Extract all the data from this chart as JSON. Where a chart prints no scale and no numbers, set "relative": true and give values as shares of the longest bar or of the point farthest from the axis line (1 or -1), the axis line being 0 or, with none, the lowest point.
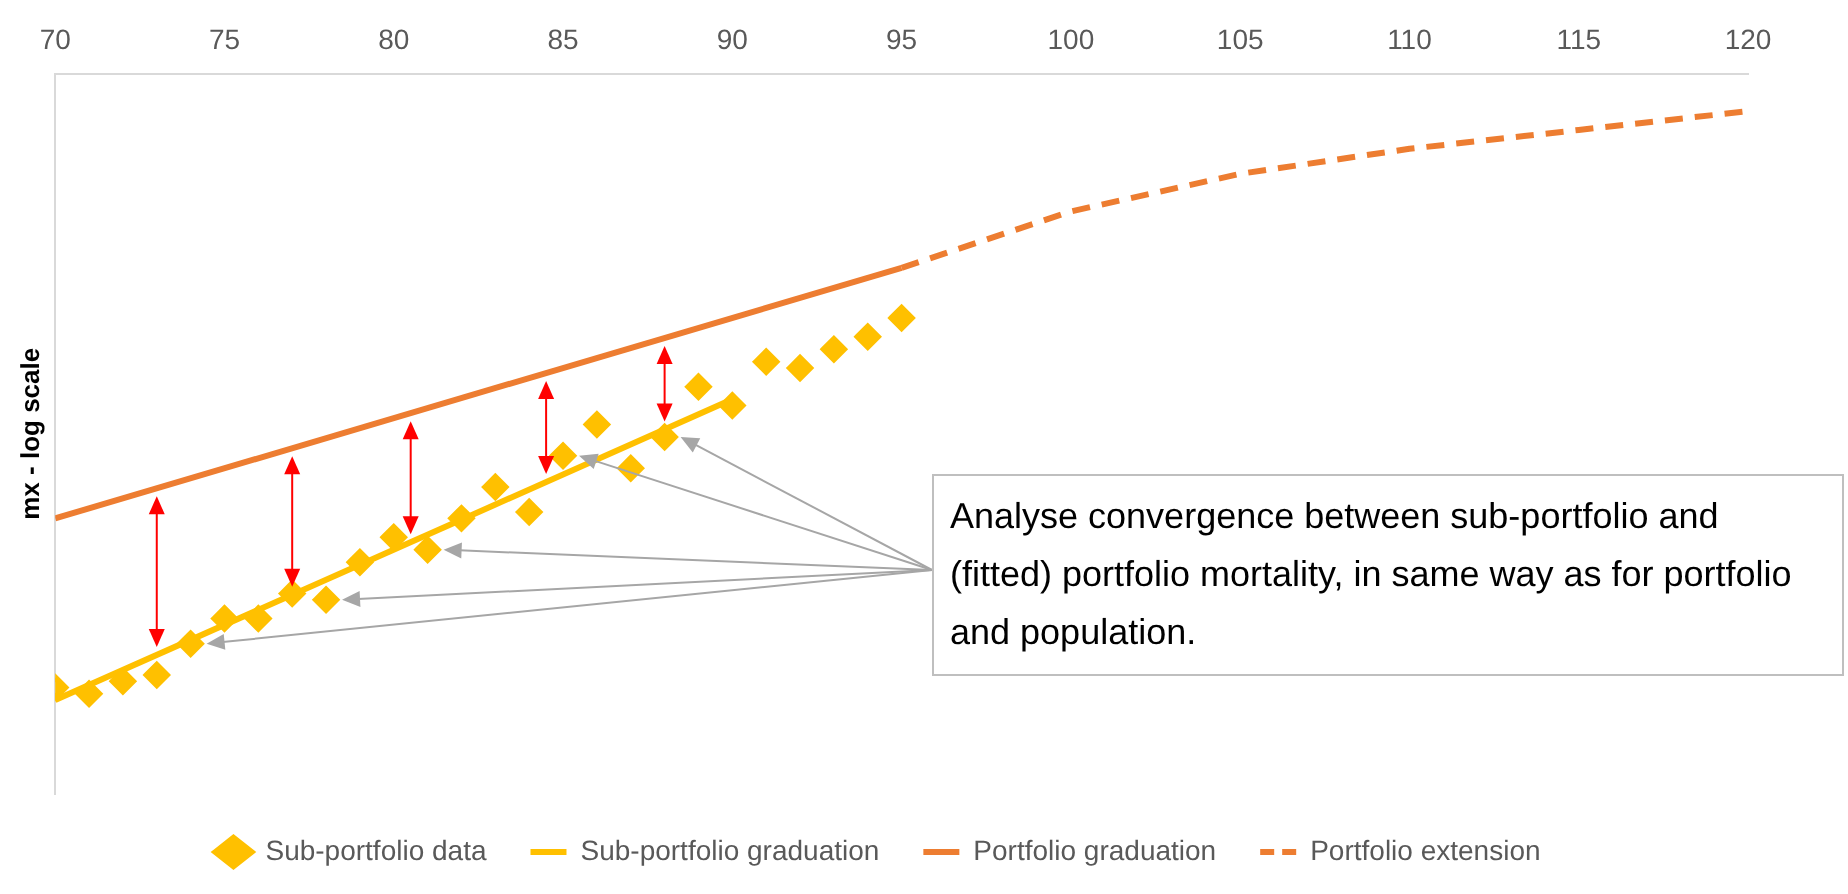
{
  "chart_data": {
    "type": "scatter",
    "ylabel": "mx - log scale",
    "relative": true,
    "xlim": [
      70,
      120
    ],
    "xticks": [
      70,
      75,
      80,
      85,
      90,
      95,
      100,
      105,
      110,
      115,
      120
    ],
    "grid": false,
    "legend": "bottom",
    "annotations": [
      "Analyse convergence between sub-portfolio and (fitted) portfolio mortality, in same way as for portfolio and population."
    ],
    "series": [
      {
        "name": "Sub-portfolio data",
        "type": "scatter",
        "marker": "diamond",
        "color": "#ffc000",
        "x": [
          70,
          71,
          72,
          73,
          74,
          75,
          76,
          77,
          78,
          79,
          80,
          81,
          82,
          83,
          84,
          85,
          86,
          87,
          88,
          89,
          90,
          91,
          92,
          93,
          94,
          95
        ],
        "values": [
          -0.98,
          -0.99,
          -0.97,
          -0.96,
          -0.91,
          -0.87,
          -0.87,
          -0.83,
          -0.84,
          -0.78,
          -0.74,
          -0.76,
          -0.71,
          -0.66,
          -0.7,
          -0.61,
          -0.56,
          -0.63,
          -0.58,
          -0.5,
          -0.53,
          -0.46,
          -0.47,
          -0.44,
          -0.42,
          -0.39
        ]
      },
      {
        "name": "Sub-portfolio graduation",
        "type": "line",
        "marker": "none",
        "color": "#ffc000",
        "x": [
          70,
          90
        ],
        "values": [
          -1,
          -0.52
        ]
      },
      {
        "name": "Portfolio graduation",
        "type": "line",
        "marker": "none",
        "color": "#ed7d31",
        "x": [
          70,
          95
        ],
        "values": [
          -0.71,
          -0.31
        ]
      },
      {
        "name": "Portfolio extension",
        "type": "line",
        "marker": "none",
        "line_style": "dashed",
        "color": "#ed7d31",
        "x": [
          95,
          100,
          105,
          110,
          115,
          120
        ],
        "values": [
          -0.31,
          -0.22,
          -0.16,
          -0.12,
          -0.09,
          -0.06
        ]
      }
    ]
  }
}
